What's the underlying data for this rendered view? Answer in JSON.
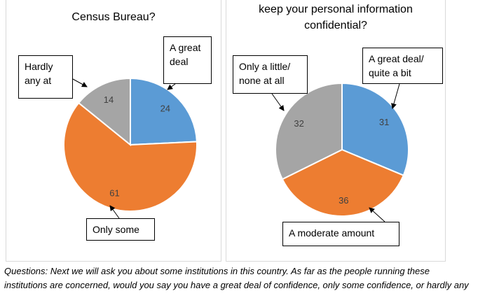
{
  "colors": {
    "blue": "#5b9bd5",
    "orange": "#ed7d31",
    "gray": "#a5a5a5"
  },
  "chart_data": [
    {
      "type": "pie",
      "title_lines": [
        "",
        "Census Bureau?"
      ],
      "slices": [
        {
          "label_lines": [
            "A great",
            "deal"
          ],
          "value": 24,
          "color": "#5b9bd5"
        },
        {
          "label_lines": [
            "Only some"
          ],
          "value": 61,
          "color": "#ed7d31"
        },
        {
          "label_lines": [
            "Hardly",
            "any at"
          ],
          "value": 14,
          "color": "#a5a5a5"
        }
      ]
    },
    {
      "type": "pie",
      "title_lines": [
        "keep your personal information",
        "confidential?"
      ],
      "slices": [
        {
          "label_lines": [
            "A great deal/",
            "quite a bit"
          ],
          "value": 31,
          "color": "#5b9bd5"
        },
        {
          "label_lines": [
            "A moderate amount"
          ],
          "value": 36,
          "color": "#ed7d31"
        },
        {
          "label_lines": [
            "Only a little/",
            "none at all"
          ],
          "value": 32,
          "color": "#a5a5a5"
        }
      ]
    }
  ],
  "footnote": {
    "lines": [
      "Questions: Next we will ask you about some institutions in this country. As far as the people running these",
      "institutions are concerned, would you say you have a great deal of confidence, only some confidence, or hardly any"
    ]
  }
}
